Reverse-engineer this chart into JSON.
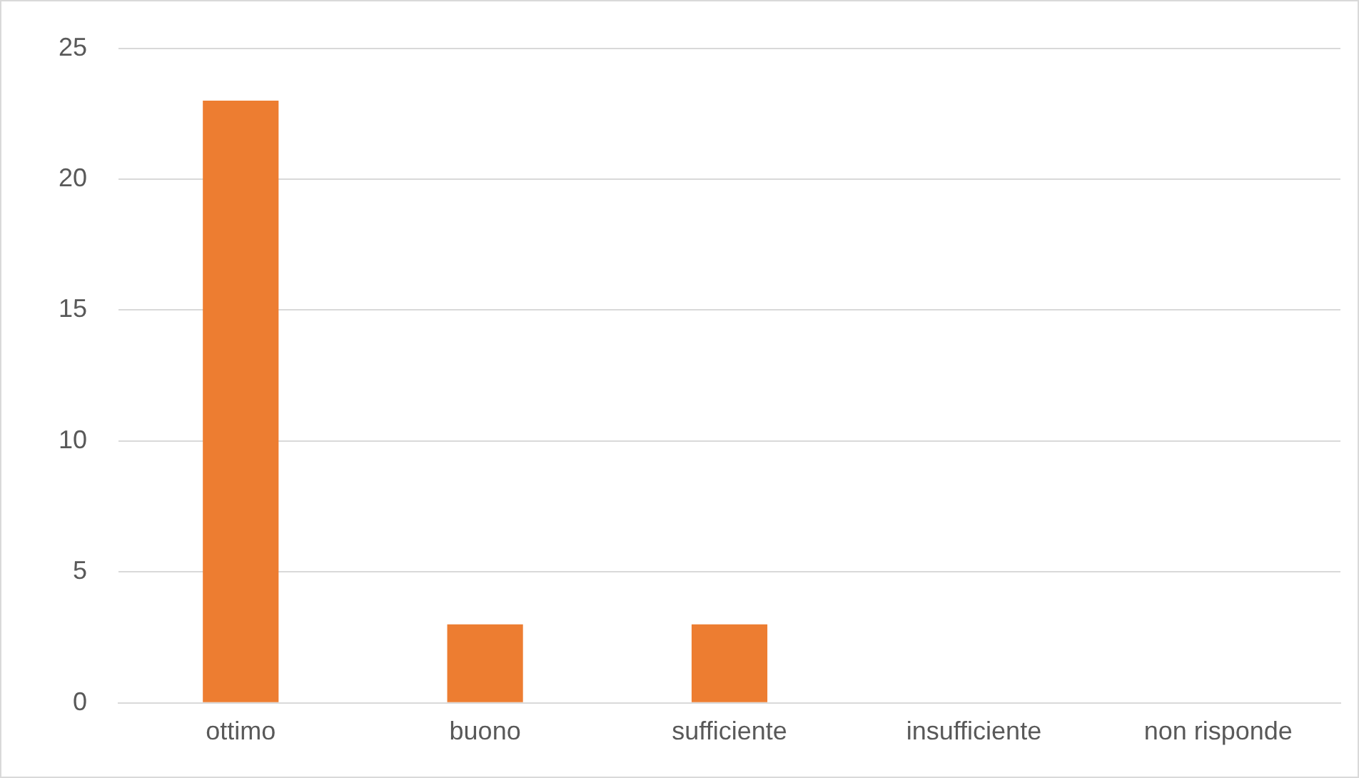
{
  "chart_data": {
    "type": "bar",
    "categories": [
      "ottimo",
      "buono",
      "sufficiente",
      "insufficiente",
      "non risponde"
    ],
    "values": [
      23,
      3,
      3,
      0,
      0
    ],
    "color": "#ed7d31",
    "ylim": [
      0,
      25
    ],
    "yticks": [
      0,
      5,
      10,
      15,
      20,
      25
    ],
    "grid": "y",
    "legend": false
  }
}
